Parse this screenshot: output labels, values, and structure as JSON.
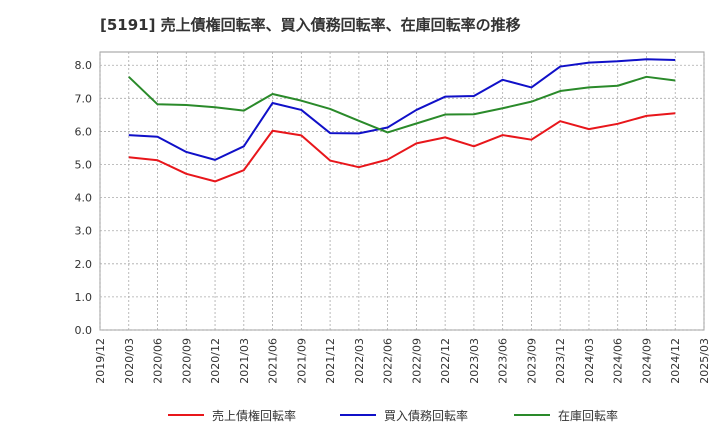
{
  "chart_data": {
    "type": "line",
    "title": "[5191]  売上債権回転率、買入債務回転率、在庫回転率の推移",
    "xlabel": "",
    "ylabel": "",
    "ylim": [
      0,
      8.4
    ],
    "yticks": [
      "0.0",
      "1.0",
      "2.0",
      "3.0",
      "4.0",
      "5.0",
      "6.0",
      "7.0",
      "8.0"
    ],
    "categories": [
      "2019/12",
      "2020/03",
      "2020/06",
      "2020/09",
      "2020/12",
      "2021/03",
      "2021/06",
      "2021/09",
      "2021/12",
      "2022/03",
      "2022/06",
      "2022/09",
      "2022/12",
      "2023/03",
      "2023/06",
      "2023/09",
      "2023/12",
      "2024/03",
      "2024/06",
      "2024/09",
      "2024/12",
      "2025/03"
    ],
    "grid": true,
    "legend_position": "bottom",
    "series": [
      {
        "name": "売上債権回転率",
        "color": "#e8161b",
        "values": [
          null,
          5.22,
          5.13,
          4.72,
          4.49,
          4.83,
          6.02,
          5.88,
          5.12,
          4.92,
          5.15,
          5.64,
          5.82,
          5.55,
          5.89,
          5.75,
          6.31,
          6.07,
          6.23,
          6.47,
          6.55,
          null
        ]
      },
      {
        "name": "買入債務回転率",
        "color": "#1010c8",
        "values": [
          null,
          5.89,
          5.84,
          5.38,
          5.14,
          5.55,
          6.86,
          6.65,
          5.95,
          5.94,
          6.12,
          6.65,
          7.05,
          7.07,
          7.56,
          7.33,
          7.96,
          8.08,
          8.12,
          8.18,
          8.16,
          null
        ]
      },
      {
        "name": "在庫回転率",
        "color": "#2a8a2a",
        "values": [
          null,
          7.65,
          6.82,
          6.8,
          6.73,
          6.63,
          7.13,
          6.93,
          6.68,
          6.32,
          5.97,
          6.24,
          6.51,
          6.52,
          6.7,
          6.9,
          7.22,
          7.33,
          7.38,
          7.65,
          7.54,
          null
        ]
      }
    ]
  }
}
